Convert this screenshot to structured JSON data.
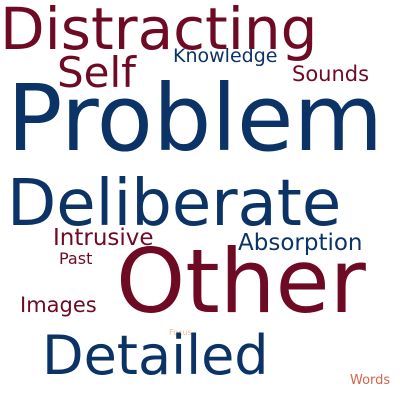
{
  "words": {
    "distracting": {
      "text": "Distracting",
      "color": "#6e0a24"
    },
    "self": {
      "text": "Self",
      "color": "#6e0a24"
    },
    "knowledge": {
      "text": "Knowledge",
      "color": "#0b3366"
    },
    "sounds": {
      "text": "Sounds",
      "color": "#6e0a24"
    },
    "problem": {
      "text": "Problem",
      "color": "#0b3366"
    },
    "deliberate": {
      "text": "Deliberate",
      "color": "#0b3366"
    },
    "intrusive": {
      "text": "Intrusive",
      "color": "#6e0a24"
    },
    "absorption": {
      "text": "Absorption",
      "color": "#0b3366"
    },
    "past": {
      "text": "Past",
      "color": "#6e0a24"
    },
    "other": {
      "text": "Other",
      "color": "#6e0a24"
    },
    "images": {
      "text": "Images",
      "color": "#6e0a24"
    },
    "focus": {
      "text": "Focus",
      "color": "#f4b894"
    },
    "detailed": {
      "text": "Detailed",
      "color": "#0b3366"
    },
    "words": {
      "text": "Words",
      "color": "#d4654a"
    }
  }
}
